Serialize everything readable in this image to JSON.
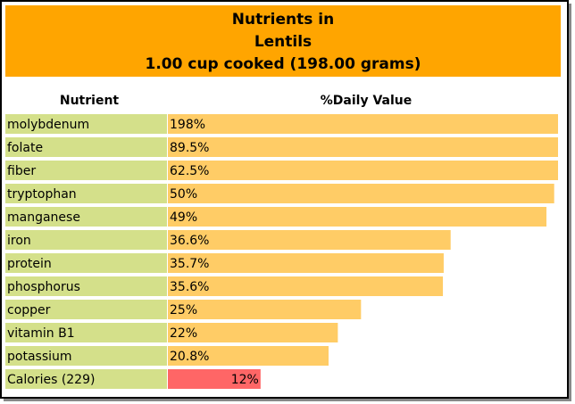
{
  "chart_data": {
    "type": "bar",
    "orientation": "horizontal",
    "title": [
      "Nutrients in",
      "Lentils",
      "1.00 cup cooked (198.00 grams)"
    ],
    "category_header": "Nutrient",
    "value_header": "%Daily Value",
    "categories": [
      "molybdenum",
      "folate",
      "fiber",
      "tryptophan",
      "manganese",
      "iron",
      "protein",
      "phosphorus",
      "copper",
      "vitamin B1",
      "potassium",
      "Calories (229)"
    ],
    "values": [
      198,
      89.5,
      62.5,
      50,
      49,
      36.6,
      35.7,
      35.6,
      25,
      22,
      20.8,
      12
    ],
    "value_labels": [
      "198%",
      "89.5%",
      "62.5%",
      "50%",
      "49%",
      "36.6%",
      "35.7%",
      "35.6%",
      "25%",
      "22%",
      "20.8%",
      "12%"
    ],
    "colors": [
      "#ffcc66",
      "#ffcc66",
      "#ffcc66",
      "#ffcc66",
      "#ffcc66",
      "#ffcc66",
      "#ffcc66",
      "#ffcc66",
      "#ffcc66",
      "#ffcc66",
      "#ffcc66",
      "#ff6666"
    ],
    "label_align": [
      "start",
      "start",
      "start",
      "start",
      "start",
      "start",
      "start",
      "start",
      "start",
      "start",
      "start",
      "end"
    ],
    "category_color": "#d4e08a",
    "header_color": "#ffa500",
    "xlim": [
      0,
      50.5
    ]
  }
}
